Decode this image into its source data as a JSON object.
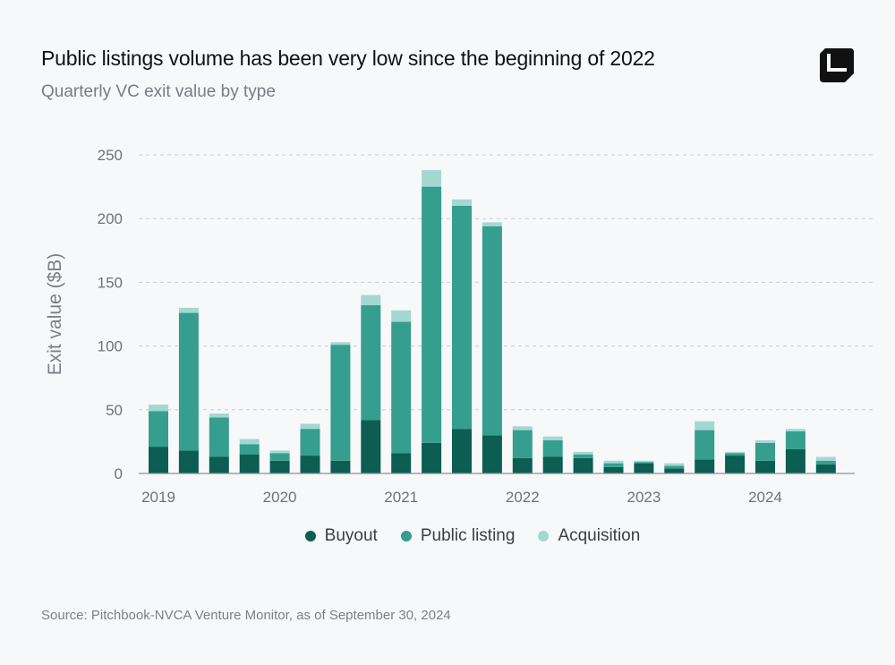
{
  "header": {
    "title": "Public listings volume has been very low since the beginning of 2022",
    "subtitle": "Quarterly VC exit value by type"
  },
  "logo": {
    "icon": "brand-logo-icon"
  },
  "footer": {
    "source": "Source: Pitchbook-NVCA Venture Monitor, as of September 30, 2024"
  },
  "colors": {
    "buyout": "#0b5e51",
    "public_listing": "#369e8e",
    "acquisition": "#a3d8d1",
    "grid": "#c9cdd1",
    "axis_text": "#6d7378",
    "ylabel_text": "#7a8085"
  },
  "chart_data": {
    "type": "bar",
    "stacked": true,
    "ylabel": "Exit value ($B)",
    "ylim": [
      0,
      250
    ],
    "yticks": [
      0,
      50,
      100,
      150,
      200,
      250
    ],
    "grid": true,
    "legend_position": "bottom",
    "x_tick_labels": [
      "2019",
      "2020",
      "2021",
      "2022",
      "2023",
      "2024"
    ],
    "categories": [
      "2019 Q1",
      "2019 Q2",
      "2019 Q3",
      "2019 Q4",
      "2020 Q1",
      "2020 Q2",
      "2020 Q3",
      "2020 Q4",
      "2021 Q1",
      "2021 Q2",
      "2021 Q3",
      "2021 Q4",
      "2022 Q1",
      "2022 Q2",
      "2022 Q3",
      "2022 Q4",
      "2023 Q1",
      "2023 Q2",
      "2023 Q3",
      "2023 Q4",
      "2024 Q1",
      "2024 Q2",
      "2024 Q3"
    ],
    "series": [
      {
        "name": "Buyout",
        "values": [
          21,
          18,
          13,
          15,
          10,
          14,
          10,
          42,
          16,
          24,
          35,
          30,
          12,
          13,
          12,
          5,
          8,
          4,
          11,
          14,
          10,
          19,
          7
        ]
      },
      {
        "name": "Public listing",
        "values": [
          28,
          108,
          31,
          8,
          6,
          21,
          91,
          90,
          103,
          201,
          175,
          164,
          22,
          13,
          3,
          3,
          1,
          2,
          23,
          2,
          14,
          14,
          3
        ]
      },
      {
        "name": "Acquisition",
        "values": [
          5,
          4,
          3,
          4,
          2,
          4,
          2,
          8,
          9,
          13,
          5,
          3,
          3,
          3,
          2,
          2,
          1,
          2,
          7,
          1,
          2,
          2,
          3
        ]
      }
    ]
  }
}
